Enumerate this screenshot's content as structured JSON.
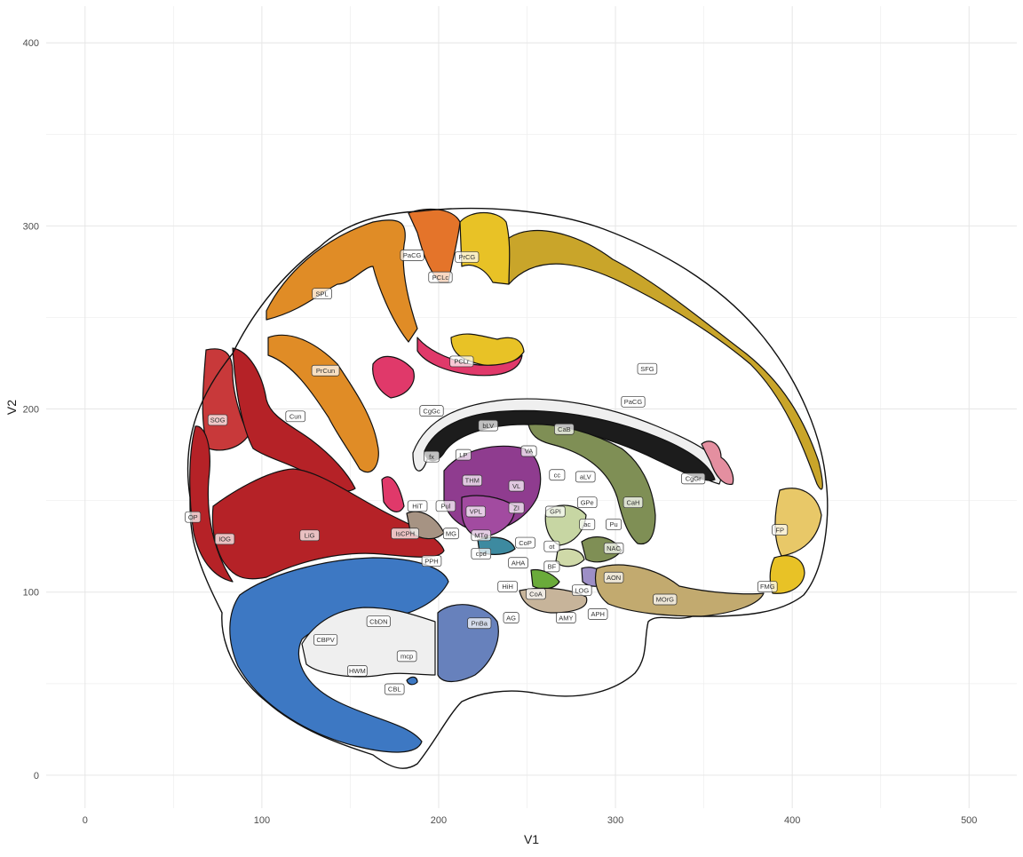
{
  "chart_data": {
    "type": "brain-atlas-map",
    "title": "",
    "xlabel": "V1",
    "ylabel": "V2",
    "xlim": [
      -22,
      527
    ],
    "ylim": [
      -18,
      420
    ],
    "x_ticks": [
      0,
      100,
      200,
      300,
      400,
      500
    ],
    "y_ticks": [
      0,
      100,
      200,
      300,
      400
    ],
    "x_tick_labels": [
      "0",
      "100",
      "200",
      "300",
      "400",
      "500"
    ],
    "y_tick_labels": [
      "0",
      "100",
      "200",
      "300",
      "400"
    ],
    "grid": true,
    "legend": "none",
    "regions": [
      {
        "abbr": "SFG",
        "x": 318,
        "y": 222
      },
      {
        "abbr": "PaCG",
        "x": 310,
        "y": 204
      },
      {
        "abbr": "CgGr",
        "x": 344,
        "y": 162
      },
      {
        "abbr": "FP",
        "x": 393,
        "y": 134
      },
      {
        "abbr": "FMG",
        "x": 386,
        "y": 103
      },
      {
        "abbr": "MOrG",
        "x": 328,
        "y": 96
      },
      {
        "abbr": "PaCG",
        "x": 185,
        "y": 284
      },
      {
        "abbr": "PrCG",
        "x": 216,
        "y": 283
      },
      {
        "abbr": "PCLc",
        "x": 201,
        "y": 272
      },
      {
        "abbr": "SPL",
        "x": 134,
        "y": 263
      },
      {
        "abbr": "PrCun",
        "x": 136,
        "y": 221
      },
      {
        "abbr": "PCLr",
        "x": 213,
        "y": 226
      },
      {
        "abbr": "CgGc",
        "x": 196,
        "y": 199
      },
      {
        "abbr": "SOG",
        "x": 75,
        "y": 194
      },
      {
        "abbr": "Cun",
        "x": 119,
        "y": 196
      },
      {
        "abbr": "OP",
        "x": 61,
        "y": 141
      },
      {
        "abbr": "IOG",
        "x": 79,
        "y": 129
      },
      {
        "abbr": "LiG",
        "x": 127,
        "y": 131
      },
      {
        "abbr": "IsCPH",
        "x": 181,
        "y": 132
      },
      {
        "abbr": "bLV",
        "x": 228,
        "y": 191
      },
      {
        "abbr": "CaB",
        "x": 271,
        "y": 189
      },
      {
        "abbr": "fx",
        "x": 196,
        "y": 174
      },
      {
        "abbr": "LP",
        "x": 214,
        "y": 175
      },
      {
        "abbr": "VA",
        "x": 251,
        "y": 177
      },
      {
        "abbr": "cc",
        "x": 267,
        "y": 164
      },
      {
        "abbr": "aLV",
        "x": 283,
        "y": 163
      },
      {
        "abbr": "THM",
        "x": 219,
        "y": 161
      },
      {
        "abbr": "VL",
        "x": 244,
        "y": 158
      },
      {
        "abbr": "HiT",
        "x": 188,
        "y": 147
      },
      {
        "abbr": "Pul",
        "x": 204,
        "y": 147
      },
      {
        "abbr": "ZI",
        "x": 244,
        "y": 146
      },
      {
        "abbr": "VPL",
        "x": 221,
        "y": 144
      },
      {
        "abbr": "GPe",
        "x": 284,
        "y": 149
      },
      {
        "abbr": "GPi",
        "x": 266,
        "y": 144
      },
      {
        "abbr": "CaH",
        "x": 310,
        "y": 149
      },
      {
        "abbr": "ac",
        "x": 284,
        "y": 137
      },
      {
        "abbr": "Pu",
        "x": 299,
        "y": 137
      },
      {
        "abbr": "MG",
        "x": 207,
        "y": 132
      },
      {
        "abbr": "MTg",
        "x": 224,
        "y": 131
      },
      {
        "abbr": "CoP",
        "x": 249,
        "y": 127
      },
      {
        "abbr": "ot",
        "x": 264,
        "y": 125
      },
      {
        "abbr": "NAC",
        "x": 299,
        "y": 124
      },
      {
        "abbr": "cpd",
        "x": 224,
        "y": 121
      },
      {
        "abbr": "PPH",
        "x": 196,
        "y": 117
      },
      {
        "abbr": "AHA",
        "x": 245,
        "y": 116
      },
      {
        "abbr": "BF",
        "x": 264,
        "y": 114
      },
      {
        "abbr": "AON",
        "x": 299,
        "y": 108
      },
      {
        "abbr": "HiH",
        "x": 239,
        "y": 103
      },
      {
        "abbr": "CoA",
        "x": 255,
        "y": 99
      },
      {
        "abbr": "LOG",
        "x": 281,
        "y": 101
      },
      {
        "abbr": "APH",
        "x": 290,
        "y": 88
      },
      {
        "abbr": "AMY",
        "x": 272,
        "y": 86
      },
      {
        "abbr": "AG",
        "x": 241,
        "y": 86
      },
      {
        "abbr": "CbDN",
        "x": 166,
        "y": 84
      },
      {
        "abbr": "PnBa",
        "x": 223,
        "y": 83
      },
      {
        "abbr": "CBPV",
        "x": 136,
        "y": 74
      },
      {
        "abbr": "mcp",
        "x": 182,
        "y": 65
      },
      {
        "abbr": "HWM",
        "x": 154,
        "y": 57
      },
      {
        "abbr": "CBL",
        "x": 175,
        "y": 47
      }
    ]
  }
}
